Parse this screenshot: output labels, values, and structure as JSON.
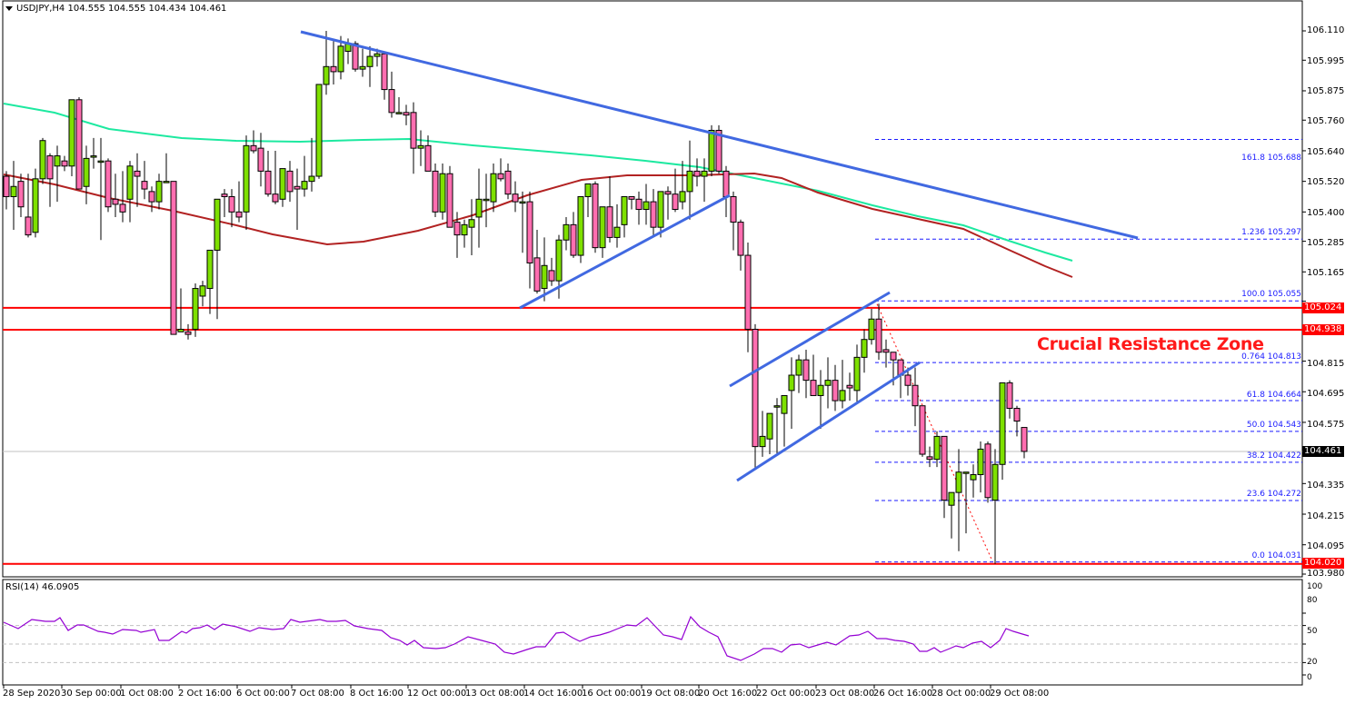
{
  "chart_data": {
    "type": "candlestick",
    "symbol": "USDJPY",
    "timeframe": "H4",
    "title": "USDJPY,H4  104.555 104.555 104.434 104.461",
    "ohlc_header": {
      "open": 104.555,
      "high": 104.555,
      "low": 104.434,
      "close": 104.461
    },
    "current_price": 104.461,
    "y_ticks": [
      106.11,
      105.995,
      105.875,
      105.76,
      105.64,
      105.52,
      105.4,
      105.285,
      105.165,
      105.05,
      104.935,
      104.815,
      104.695,
      104.575,
      104.461,
      104.335,
      104.215,
      104.095,
      103.98
    ],
    "ylim": [
      103.98,
      106.11
    ],
    "x_labels": [
      "28 Sep 2020",
      "30 Sep 00:00",
      "1 Oct 08:00",
      "2 Oct 16:00",
      "6 Oct 00:00",
      "7 Oct 08:00",
      "8 Oct 16:00",
      "12 Oct 00:00",
      "13 Oct 08:00",
      "14 Oct 16:00",
      "16 Oct 00:00",
      "19 Oct 08:00",
      "20 Oct 16:00",
      "22 Oct 00:00",
      "23 Oct 08:00",
      "26 Oct 16:00",
      "28 Oct 00:00",
      "29 Oct 08:00"
    ],
    "horizontal_levels": [
      {
        "price": 105.024,
        "color": "#ff0000",
        "label": "105.024"
      },
      {
        "price": 104.938,
        "color": "#ff0000",
        "label": "104.938"
      },
      {
        "price": 104.02,
        "color": "#ff0000",
        "label": "104.020"
      }
    ],
    "fibonacci": [
      {
        "level": "161.8",
        "price": 105.688
      },
      {
        "level": "1.236",
        "price": 105.297
      },
      {
        "level": "100.0",
        "price": 105.055
      },
      {
        "level": "0.764",
        "price": 104.813
      },
      {
        "level": "61.8",
        "price": 104.664
      },
      {
        "level": "50.0",
        "price": 104.543
      },
      {
        "level": "38.2",
        "price": 104.422
      },
      {
        "level": "23.6",
        "price": 104.272
      },
      {
        "level": "0.0",
        "price": 104.031
      }
    ],
    "annotation": "Crucial Resistance Zone",
    "indicators": {
      "sma_green_color": "#1de9a0",
      "sma_red_color": "#b22222",
      "rsi": {
        "label": "RSI(14) 46.0905",
        "period": 14,
        "value": 46.0905,
        "levels": [
          80,
          50,
          20
        ],
        "axis": [
          100,
          80,
          50,
          20,
          0
        ],
        "color": "#9400d3"
      }
    },
    "candles": [
      [
        105.54,
        105.56,
        105.41,
        105.46
      ],
      [
        105.46,
        105.6,
        105.33,
        105.5
      ],
      [
        105.52,
        105.55,
        105.38,
        105.42
      ],
      [
        105.38,
        105.55,
        105.3,
        105.31
      ],
      [
        105.32,
        105.57,
        105.3,
        105.53
      ],
      [
        105.53,
        105.69,
        105.51,
        105.68
      ],
      [
        105.62,
        105.63,
        105.42,
        105.53
      ],
      [
        105.58,
        105.66,
        105.44,
        105.62
      ],
      [
        105.6,
        105.62,
        105.56,
        105.58
      ],
      [
        105.58,
        105.83,
        105.54,
        105.84
      ],
      [
        105.84,
        105.85,
        105.5,
        105.49
      ],
      [
        105.5,
        105.66,
        105.43,
        105.61
      ],
      [
        105.62,
        105.69,
        105.57,
        105.62
      ],
      [
        105.6,
        105.69,
        105.29,
        105.6
      ],
      [
        105.6,
        105.61,
        105.4,
        105.42
      ],
      [
        105.45,
        105.55,
        105.38,
        105.43
      ],
      [
        105.43,
        105.56,
        105.36,
        105.4
      ],
      [
        105.45,
        105.6,
        105.36,
        105.58
      ],
      [
        105.56,
        105.63,
        105.42,
        105.54
      ],
      [
        105.52,
        105.6,
        105.45,
        105.49
      ],
      [
        105.48,
        105.5,
        105.4,
        105.44
      ],
      [
        105.44,
        105.55,
        105.41,
        105.52
      ],
      [
        105.52,
        105.63,
        105.52,
        105.52
      ],
      [
        105.52,
        105.52,
        104.94,
        104.92
      ],
      [
        104.93,
        105.1,
        105.1,
        104.94
      ],
      [
        104.93,
        104.96,
        104.9,
        104.92
      ],
      [
        104.94,
        105.12,
        104.91,
        105.1
      ],
      [
        105.07,
        105.13,
        105.03,
        105.11
      ],
      [
        105.1,
        105.23,
        105.0,
        105.25
      ],
      [
        105.25,
        105.44,
        104.98,
        105.45
      ],
      [
        105.47,
        105.49,
        105.38,
        105.46
      ],
      [
        105.46,
        105.49,
        105.34,
        105.4
      ],
      [
        105.4,
        105.52,
        105.36,
        105.38
      ],
      [
        105.4,
        105.7,
        105.33,
        105.66
      ],
      [
        105.66,
        105.72,
        105.63,
        105.64
      ],
      [
        105.65,
        105.71,
        105.5,
        105.56
      ],
      [
        105.56,
        105.64,
        105.46,
        105.47
      ],
      [
        105.47,
        105.64,
        105.43,
        105.44
      ],
      [
        105.45,
        105.56,
        105.42,
        105.57
      ],
      [
        105.56,
        105.6,
        105.44,
        105.48
      ],
      [
        105.5,
        105.57,
        105.33,
        105.49
      ],
      [
        105.49,
        105.62,
        105.46,
        105.52
      ],
      [
        105.52,
        105.69,
        105.48,
        105.54
      ],
      [
        105.54,
        105.82,
        105.53,
        105.9
      ],
      [
        105.9,
        106.11,
        105.86,
        105.97
      ],
      [
        105.97,
        106.07,
        105.9,
        105.95
      ],
      [
        105.95,
        106.09,
        105.92,
        106.05
      ],
      [
        106.03,
        106.08,
        105.98,
        106.06
      ],
      [
        106.06,
        106.07,
        105.95,
        105.96
      ],
      [
        105.96,
        106.04,
        105.93,
        105.97
      ],
      [
        105.97,
        106.05,
        105.89,
        106.01
      ],
      [
        106.01,
        106.04,
        105.97,
        106.02
      ],
      [
        106.02,
        106.02,
        105.84,
        105.88
      ],
      [
        105.88,
        105.95,
        105.77,
        105.79
      ],
      [
        105.79,
        105.85,
        105.82,
        105.79
      ],
      [
        105.79,
        105.82,
        105.74,
        105.78
      ],
      [
        105.79,
        105.83,
        105.55,
        105.65
      ],
      [
        105.65,
        105.72,
        105.58,
        105.66
      ],
      [
        105.66,
        105.7,
        105.56,
        105.56
      ],
      [
        105.56,
        105.59,
        105.38,
        105.4
      ],
      [
        105.4,
        105.59,
        105.37,
        105.55
      ],
      [
        105.55,
        105.58,
        105.34,
        105.34
      ],
      [
        105.36,
        105.4,
        105.22,
        105.31
      ],
      [
        105.31,
        105.37,
        105.26,
        105.35
      ],
      [
        105.34,
        105.45,
        105.23,
        105.37
      ],
      [
        105.38,
        105.57,
        105.26,
        105.45
      ],
      [
        105.45,
        105.55,
        105.34,
        105.45
      ],
      [
        105.44,
        105.59,
        105.4,
        105.55
      ],
      [
        105.55,
        105.61,
        105.52,
        105.53
      ],
      [
        105.56,
        105.59,
        105.45,
        105.47
      ],
      [
        105.47,
        105.52,
        105.4,
        105.44
      ],
      [
        105.44,
        105.48,
        105.24,
        105.44
      ],
      [
        105.44,
        105.48,
        105.1,
        105.2
      ],
      [
        105.22,
        105.33,
        105.08,
        105.09
      ],
      [
        105.1,
        105.3,
        105.05,
        105.19
      ],
      [
        105.17,
        105.22,
        105.11,
        105.13
      ],
      [
        105.13,
        105.31,
        105.06,
        105.29
      ],
      [
        105.29,
        105.38,
        105.25,
        105.35
      ],
      [
        105.35,
        105.4,
        105.22,
        105.23
      ],
      [
        105.23,
        105.43,
        105.2,
        105.46
      ],
      [
        105.46,
        105.51,
        105.38,
        105.51
      ],
      [
        105.51,
        105.52,
        105.24,
        105.26
      ],
      [
        105.26,
        105.42,
        105.22,
        105.42
      ],
      [
        105.42,
        105.54,
        105.28,
        105.3
      ],
      [
        105.3,
        105.43,
        105.26,
        105.34
      ],
      [
        105.35,
        105.45,
        105.3,
        105.46
      ],
      [
        105.46,
        105.46,
        105.41,
        105.45
      ],
      [
        105.45,
        105.48,
        105.35,
        105.41
      ],
      [
        105.41,
        105.51,
        105.35,
        105.44
      ],
      [
        105.44,
        105.49,
        105.3,
        105.34
      ],
      [
        105.34,
        105.48,
        105.3,
        105.48
      ],
      [
        105.48,
        105.5,
        105.37,
        105.47
      ],
      [
        105.47,
        105.57,
        105.4,
        105.41
      ],
      [
        105.44,
        105.6,
        105.41,
        105.48
      ],
      [
        105.48,
        105.68,
        105.37,
        105.56
      ],
      [
        105.56,
        105.61,
        105.5,
        105.54
      ],
      [
        105.54,
        105.61,
        105.44,
        105.56
      ],
      [
        105.56,
        105.74,
        105.54,
        105.72
      ],
      [
        105.72,
        105.74,
        105.55,
        105.56
      ],
      [
        105.56,
        105.58,
        105.38,
        105.46
      ],
      [
        105.46,
        105.48,
        105.25,
        105.36
      ],
      [
        105.36,
        105.37,
        105.17,
        105.23
      ],
      [
        105.23,
        105.28,
        104.85,
        104.94
      ],
      [
        104.94,
        104.96,
        104.39,
        104.48
      ],
      [
        104.48,
        104.62,
        104.44,
        104.52
      ],
      [
        104.51,
        104.61,
        104.45,
        104.61
      ],
      [
        104.64,
        104.67,
        104.45,
        104.64
      ],
      [
        104.61,
        104.67,
        104.48,
        104.68
      ],
      [
        104.7,
        104.83,
        104.55,
        104.76
      ],
      [
        104.76,
        104.84,
        104.69,
        104.82
      ],
      [
        104.82,
        104.86,
        104.67,
        104.74
      ],
      [
        104.74,
        104.84,
        104.7,
        104.68
      ],
      [
        104.68,
        104.78,
        104.55,
        104.72
      ],
      [
        104.72,
        104.83,
        104.63,
        104.74
      ],
      [
        104.74,
        104.8,
        104.62,
        104.66
      ],
      [
        104.66,
        104.82,
        104.63,
        104.7
      ],
      [
        104.72,
        104.77,
        104.66,
        104.71
      ],
      [
        104.7,
        104.88,
        104.65,
        104.83
      ],
      [
        104.83,
        104.94,
        104.77,
        104.9
      ],
      [
        104.9,
        105.02,
        104.88,
        104.98
      ],
      [
        104.98,
        105.04,
        104.82,
        104.85
      ],
      [
        104.86,
        104.9,
        104.79,
        104.85
      ],
      [
        104.85,
        104.84,
        104.72,
        104.82
      ],
      [
        104.82,
        104.82,
        104.67,
        104.76
      ],
      [
        104.76,
        104.79,
        104.68,
        104.72
      ],
      [
        104.72,
        104.79,
        104.56,
        104.64
      ],
      [
        104.64,
        104.58,
        104.44,
        104.45
      ],
      [
        104.44,
        104.48,
        104.4,
        104.43
      ],
      [
        104.43,
        104.54,
        104.4,
        104.52
      ],
      [
        104.52,
        104.49,
        104.2,
        104.27
      ],
      [
        104.25,
        104.28,
        104.12,
        104.3
      ],
      [
        104.3,
        104.47,
        104.07,
        104.38
      ],
      [
        104.38,
        104.38,
        104.14,
        104.38
      ],
      [
        104.35,
        104.41,
        104.28,
        104.37
      ],
      [
        104.37,
        104.5,
        104.3,
        104.47
      ],
      [
        104.49,
        104.5,
        104.26,
        104.28
      ],
      [
        104.27,
        104.47,
        104.02,
        104.41
      ],
      [
        104.41,
        104.69,
        104.35,
        104.73
      ],
      [
        104.73,
        104.74,
        104.59,
        104.63
      ],
      [
        104.63,
        104.64,
        104.52,
        104.58
      ],
      [
        104.555,
        104.555,
        104.434,
        104.461
      ]
    ]
  },
  "header": {
    "title": "USDJPY,H4  104.555 104.555 104.434 104.461"
  },
  "rsi_panel": {
    "label": "RSI(14) 46.0905"
  },
  "annotation": {
    "text": "Crucial Resistance Zone"
  },
  "axis": {
    "price_ticks": [
      "106.110",
      "105.995",
      "105.875",
      "105.760",
      "105.640",
      "105.520",
      "105.400",
      "105.285",
      "105.165",
      "105.050",
      "104.935",
      "104.815",
      "104.695",
      "104.575",
      "104.335",
      "104.215",
      "104.095",
      "103.980"
    ],
    "price_tags": {
      "level1": "105.024",
      "level2": "104.938",
      "current": "104.461",
      "support": "104.020"
    },
    "rsi_ticks": [
      "100",
      "80",
      "50",
      "20",
      "0"
    ],
    "time_labels": [
      "28 Sep 2020",
      "30 Sep 00:00",
      "1 Oct 08:00",
      "2 Oct 16:00",
      "6 Oct 00:00",
      "7 Oct 08:00",
      "8 Oct 16:00",
      "12 Oct 00:00",
      "13 Oct 08:00",
      "14 Oct 16:00",
      "16 Oct 00:00",
      "19 Oct 08:00",
      "20 Oct 16:00",
      "22 Oct 00:00",
      "23 Oct 08:00",
      "26 Oct 16:00",
      "28 Oct 00:00",
      "29 Oct 08:00"
    ]
  },
  "fib_labels": [
    "161.8 105.688",
    "1.236 105.297",
    "100.0 105.055",
    "0.764 104.813",
    "61.8 104.664",
    "50.0 104.543",
    "38.2 104.422",
    "23.6 104.272",
    "0.0 104.031"
  ],
  "colors": {
    "bull": "#7ee000",
    "bear": "#ff6eb0",
    "level": "#ff0000",
    "trend": "#4169e1",
    "fib": "#1a1aff",
    "rsi": "#9400d3"
  }
}
